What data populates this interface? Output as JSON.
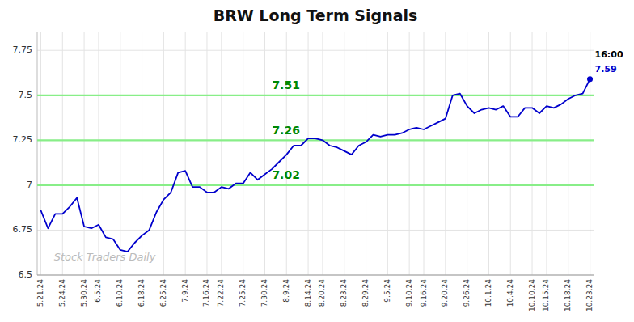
{
  "chart_data": {
    "type": "line",
    "title": "BRW Long Term Signals",
    "categories": [
      "5.21.24",
      null,
      null,
      "5.24.24",
      null,
      null,
      "5.30.24",
      null,
      "6.5.24",
      null,
      null,
      "6.10.24",
      null,
      null,
      "6.18.24",
      null,
      null,
      "6.25.24",
      null,
      null,
      "7.9.24",
      null,
      null,
      "7.16.24",
      null,
      "7.22.24",
      null,
      null,
      "7.25.24",
      null,
      null,
      "7.30.24",
      null,
      null,
      "8.9.24",
      null,
      null,
      "8.14.24",
      null,
      "8.20.24",
      null,
      null,
      "8.23.24",
      null,
      null,
      "8.29.24",
      null,
      null,
      "9.5.24",
      null,
      null,
      "9.10.24",
      null,
      "9.16.24",
      null,
      null,
      "9.20.24",
      null,
      null,
      "9.26.24",
      null,
      null,
      "10.1.24",
      null,
      null,
      "10.4.24",
      null,
      null,
      "10.10.24",
      null,
      "10.15.24",
      null,
      null,
      "10.18.24",
      null,
      null,
      "10.23.24"
    ],
    "values": [
      6.86,
      6.76,
      6.84,
      6.84,
      6.88,
      6.93,
      6.77,
      6.76,
      6.78,
      6.71,
      6.7,
      6.64,
      6.63,
      6.68,
      6.72,
      6.75,
      6.85,
      6.92,
      6.96,
      7.07,
      7.08,
      6.99,
      6.99,
      6.96,
      6.96,
      6.99,
      6.98,
      7.01,
      7.01,
      7.07,
      7.03,
      7.06,
      7.09,
      7.13,
      7.17,
      7.22,
      7.22,
      7.26,
      7.26,
      7.25,
      7.22,
      7.21,
      7.19,
      7.17,
      7.22,
      7.24,
      7.28,
      7.27,
      7.28,
      7.28,
      7.29,
      7.31,
      7.32,
      7.31,
      7.33,
      7.35,
      7.37,
      7.5,
      7.51,
      7.44,
      7.4,
      7.42,
      7.43,
      7.42,
      7.44,
      7.38,
      7.38,
      7.43,
      7.43,
      7.4,
      7.44,
      7.43,
      7.45,
      7.48,
      7.5,
      7.51,
      7.59
    ],
    "color": "#0000cc",
    "ylim": [
      6.5,
      7.85
    ],
    "yticks": [
      6.5,
      6.75,
      7,
      7.25,
      7.5,
      7.75
    ],
    "grid": true,
    "hlines": [
      {
        "value": 7.0,
        "color": "#88ee88"
      },
      {
        "value": 7.25,
        "color": "#88ee88"
      },
      {
        "value": 7.5,
        "color": "#88ee88"
      }
    ],
    "annotations": [
      {
        "text": "7.51",
        "x": 32,
        "y": 7.535,
        "color": "#008800"
      },
      {
        "text": "7.26",
        "x": 32,
        "y": 7.285,
        "color": "#008800"
      },
      {
        "text": "7.02",
        "x": 32,
        "y": 7.035,
        "color": "#008800"
      }
    ],
    "end_labels": [
      {
        "text": "16:00",
        "color": "#000000"
      },
      {
        "text": "7.59",
        "color": "#0000cc"
      }
    ],
    "watermark": "Stock Traders Daily"
  }
}
